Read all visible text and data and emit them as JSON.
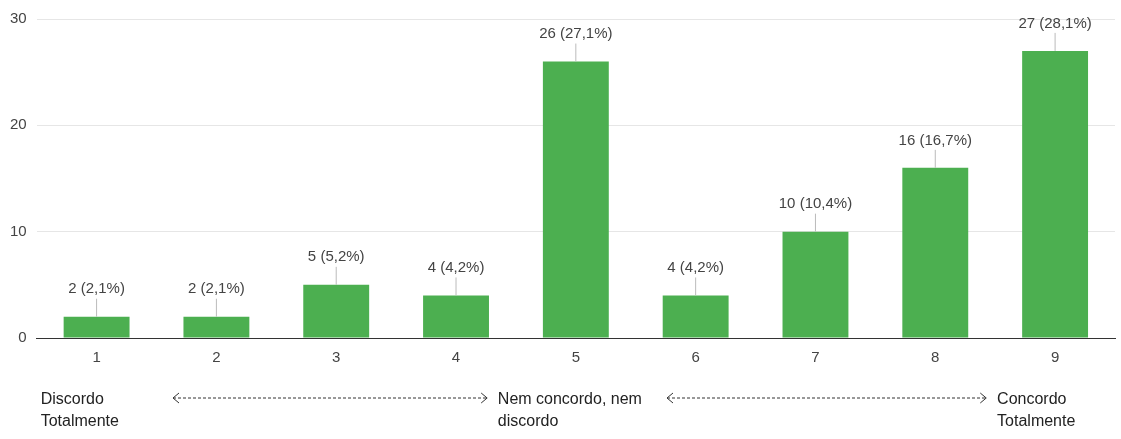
{
  "chart_data": {
    "type": "bar",
    "categories": [
      "1",
      "2",
      "3",
      "4",
      "5",
      "6",
      "7",
      "8",
      "9"
    ],
    "values": [
      2,
      2,
      5,
      4,
      26,
      4,
      10,
      16,
      27
    ],
    "value_labels": [
      "2 (2,1%)",
      "2 (2,1%)",
      "5 (5,2%)",
      "4 (4,2%)",
      "26 (27,1%)",
      "4 (4,2%)",
      "10 (10,4%)",
      "16 (16,7%)",
      "27 (28,1%)"
    ],
    "color": "#4caf50",
    "ylim": [
      0,
      30
    ],
    "yticks": [
      0,
      10,
      20,
      30
    ],
    "grid": "y",
    "legend": false,
    "annotations": [
      "Discordo Totalmente",
      "Nem concordo, nem discordo",
      "Concordo Totalmente"
    ]
  }
}
